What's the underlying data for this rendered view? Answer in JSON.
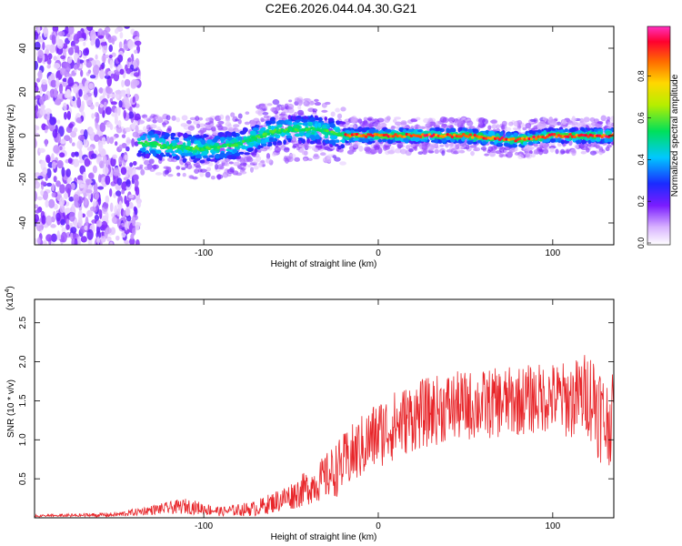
{
  "title": "C2E6.2026.044.04.30.G21",
  "colors": {
    "snr_line": "#e8262a",
    "axis": "#000000"
  },
  "chart_data": [
    {
      "type": "heatmap",
      "name": "spectrogram",
      "xlabel": "Height of straight line (km)",
      "ylabel": "Frequency (Hz)",
      "xlim": [
        -197,
        135
      ],
      "ylim": [
        -50,
        50
      ],
      "xticks": [
        -100,
        0,
        100
      ],
      "yticks": [
        -40,
        -20,
        0,
        20,
        40
      ],
      "colorbar": {
        "label": "Normalized spectral amplitude",
        "range": [
          0,
          1
        ],
        "ticks": [
          0.0,
          0.2,
          0.4,
          0.6,
          0.8
        ],
        "colormap": "rainbow (white-violet-blue-cyan-green-yellow-red-magenta)"
      },
      "features": {
        "noise_region_x": [
          -197,
          -137
        ],
        "ridge_center": [
          [
            -137,
            -3
          ],
          [
            -120,
            -5
          ],
          [
            -100,
            -6
          ],
          [
            -80,
            -4
          ],
          [
            -60,
            2
          ],
          [
            -40,
            3
          ],
          [
            -30,
            2
          ],
          [
            -20,
            0
          ],
          [
            0,
            0
          ],
          [
            50,
            0
          ],
          [
            80,
            -2
          ],
          [
            100,
            0
          ],
          [
            120,
            0
          ],
          [
            135,
            0
          ]
        ],
        "peak_segment_x": [
          -20,
          130
        ]
      }
    },
    {
      "type": "line",
      "name": "snr",
      "xlabel": "Height of straight line (km)",
      "ylabel": "SNR (10 * v/v)",
      "scale_label": "(x10",
      "scale_exponent": "4",
      "xlim": [
        -197,
        135
      ],
      "ylim": [
        0,
        2.8
      ],
      "xticks": [
        -100,
        0,
        100
      ],
      "yticks": [
        0.5,
        1.0,
        1.5,
        2.0,
        2.5
      ],
      "envelope": {
        "x": [
          -197,
          -150,
          -130,
          -110,
          -90,
          -70,
          -50,
          -35,
          -25,
          -15,
          0,
          20,
          40,
          60,
          80,
          100,
          110,
          120,
          125,
          130,
          135
        ],
        "mean": [
          0.02,
          0.04,
          0.1,
          0.15,
          0.08,
          0.12,
          0.28,
          0.45,
          0.6,
          0.8,
          1.08,
          1.3,
          1.42,
          1.45,
          1.5,
          1.55,
          1.5,
          1.6,
          1.5,
          1.2,
          1.3
        ],
        "amplitude": [
          0.02,
          0.03,
          0.06,
          0.1,
          0.06,
          0.1,
          0.18,
          0.25,
          0.35,
          0.4,
          0.45,
          0.45,
          0.45,
          0.45,
          0.45,
          0.45,
          0.5,
          0.55,
          0.7,
          0.6,
          0.55
        ]
      }
    }
  ]
}
